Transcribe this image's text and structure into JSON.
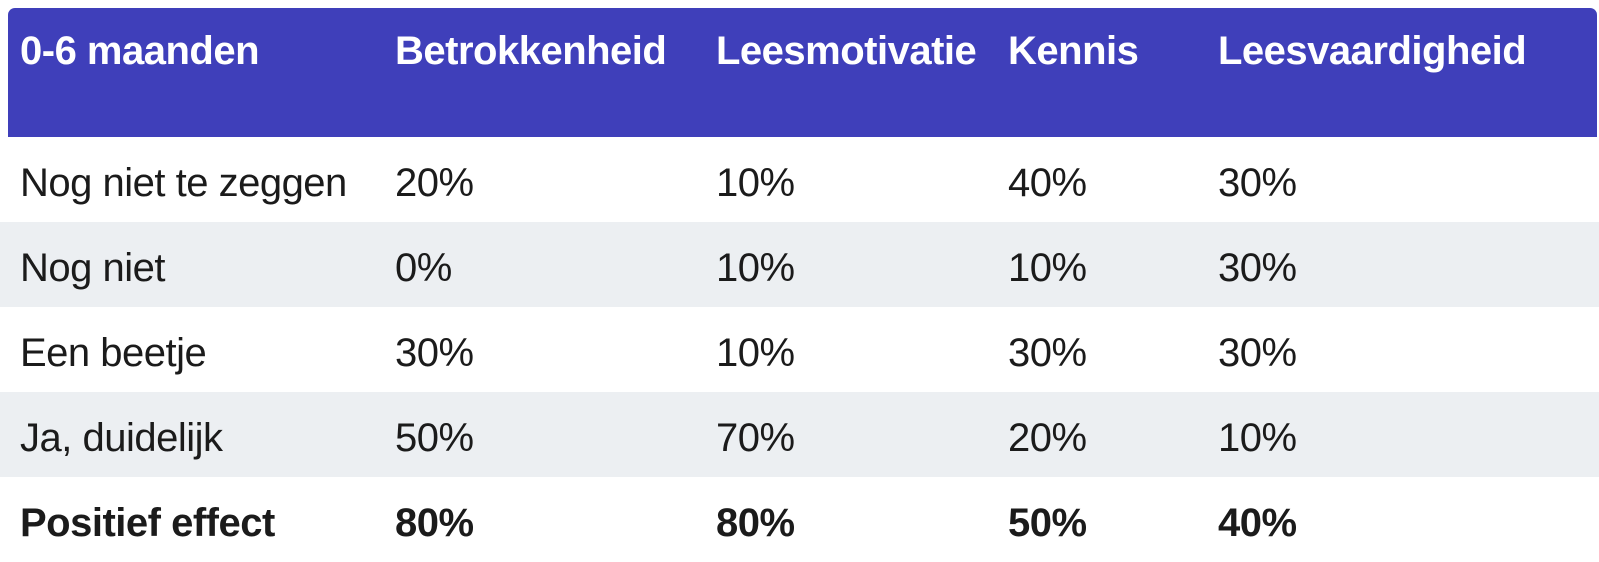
{
  "chart_data": {
    "type": "table",
    "title": "0-6 maanden",
    "columns": [
      "0-6 maanden",
      "Betrokkenheid",
      "Leesmotivatie",
      "Kennis",
      "Leesvaardigheid"
    ],
    "rows": [
      [
        "Nog niet te zeggen",
        "20%",
        "10%",
        "40%",
        "30%"
      ],
      [
        "Nog niet",
        "0%",
        "10%",
        "10%",
        "30%"
      ],
      [
        "Een beetje",
        "30%",
        "10%",
        "30%",
        "30%"
      ],
      [
        "Ja, duidelijk",
        "50%",
        "70%",
        "20%",
        "10%"
      ],
      [
        "Positief effect",
        "80%",
        "80%",
        "50%",
        "40%"
      ]
    ],
    "emphasized_row": "Positief effect",
    "layout_hints": {
      "striped_rows": "rows 2 and 4 shaded",
      "header_position": "top",
      "values_unit": "percent"
    }
  },
  "colors": {
    "header_bg": "#3F3FBA",
    "header_text": "#FFFFFF",
    "row_alt_bg": "#ECEFF2",
    "row_bg": "#FFFFFF",
    "body_text": "#1B1B1B"
  }
}
